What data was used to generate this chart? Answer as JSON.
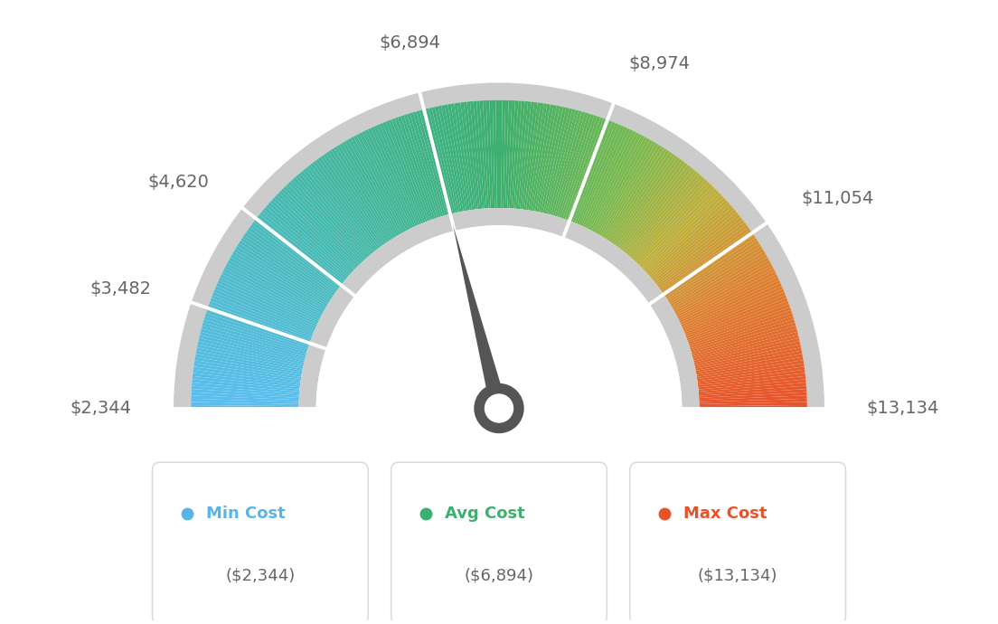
{
  "min_val": 2344,
  "max_val": 13134,
  "avg_val": 6894,
  "label_values": [
    2344,
    3482,
    4620,
    6894,
    8974,
    11054,
    13134
  ],
  "label_texts": [
    "$2,344",
    "$3,482",
    "$4,620",
    "$6,894",
    "$8,974",
    "$11,054",
    "$13,134"
  ],
  "label_ha": [
    "right",
    "right",
    "right",
    "center",
    "left",
    "left",
    "left"
  ],
  "min_color": "#5ab4e8",
  "avg_color": "#3daf6e",
  "max_color": "#e8522a",
  "needle_color": "#555555",
  "bg_color": "#ffffff",
  "gray_ring": "#cccccc",
  "text_color": "#666666",
  "legend_items": [
    {
      "label": "Min Cost",
      "value": "($2,344)",
      "color": "#5ab4e8"
    },
    {
      "label": "Avg Cost",
      "value": "($6,894)",
      "color": "#3daf6e"
    },
    {
      "label": "Max Cost",
      "value": "($13,134)",
      "color": "#e8522a"
    }
  ],
  "gradient_stops": [
    [
      0.0,
      [
        90,
        190,
        240
      ]
    ],
    [
      0.25,
      [
        70,
        185,
        175
      ]
    ],
    [
      0.5,
      [
        61,
        175,
        110
      ]
    ],
    [
      0.65,
      [
        120,
        185,
        80
      ]
    ],
    [
      0.75,
      [
        190,
        175,
        60
      ]
    ],
    [
      0.85,
      [
        220,
        130,
        50
      ]
    ],
    [
      1.0,
      [
        232,
        82,
        42
      ]
    ]
  ]
}
